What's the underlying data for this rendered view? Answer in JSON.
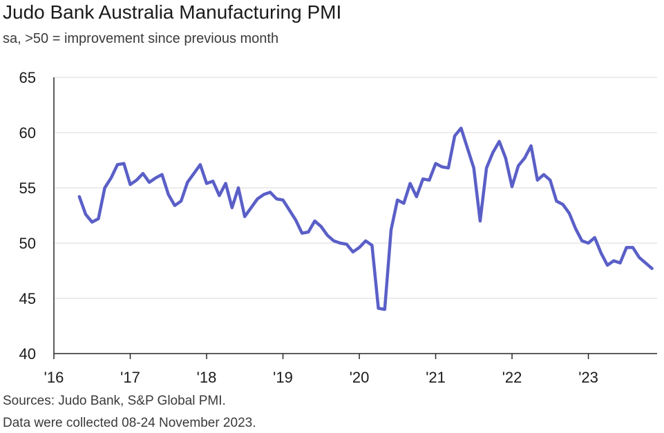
{
  "chart_data": {
    "type": "line",
    "title": "Judo Bank Australia Manufacturing PMI",
    "subtitle": "sa, >50 = improvement since previous month",
    "xlabel": "",
    "ylabel": "",
    "ylim": [
      40,
      65
    ],
    "yticks": [
      40,
      45,
      50,
      55,
      60,
      65
    ],
    "xlim": [
      2016,
      2023.9
    ],
    "xticks": [
      {
        "value": 2016,
        "label": "'16"
      },
      {
        "value": 2017,
        "label": "'17"
      },
      {
        "value": 2018,
        "label": "'18"
      },
      {
        "value": 2019,
        "label": "'19"
      },
      {
        "value": 2020,
        "label": "'20"
      },
      {
        "value": 2021,
        "label": "'21"
      },
      {
        "value": 2022,
        "label": "'22"
      },
      {
        "value": 2023,
        "label": "'23"
      }
    ],
    "grid": true,
    "line_color": "#5a5fc7",
    "series": [
      {
        "name": "Judo Bank Australia Manufacturing PMI",
        "start": 2016.333,
        "step": 0.08333,
        "values": [
          54.2,
          52.6,
          51.9,
          52.2,
          55.0,
          55.9,
          57.1,
          57.2,
          55.3,
          55.7,
          56.3,
          55.5,
          55.9,
          56.2,
          54.4,
          53.4,
          53.8,
          55.5,
          56.3,
          57.1,
          55.4,
          55.6,
          54.3,
          55.4,
          53.2,
          55.0,
          52.4,
          53.2,
          54.0,
          54.4,
          54.6,
          54.0,
          53.9,
          53.0,
          52.1,
          50.9,
          51.0,
          52.0,
          51.5,
          50.7,
          50.2,
          50.0,
          49.9,
          49.2,
          49.6,
          50.2,
          49.8,
          44.1,
          44.0,
          51.2,
          53.9,
          53.6,
          55.4,
          54.2,
          55.8,
          55.7,
          57.2,
          56.9,
          56.8,
          59.7,
          60.4,
          58.6,
          56.8,
          52.0,
          56.8,
          58.2,
          59.2,
          57.7,
          55.1,
          57.0,
          57.7,
          58.8,
          55.7,
          56.2,
          55.7,
          53.8,
          53.5,
          52.7,
          51.3,
          50.2,
          50.0,
          50.5,
          49.1,
          48.0,
          48.4,
          48.2,
          49.6,
          49.6,
          48.7,
          48.2,
          47.7
        ]
      }
    ]
  },
  "footer": {
    "sources": "Sources: Judo Bank, S&P Global PMI.",
    "collected": "Data were collected 08-24 November 2023."
  }
}
